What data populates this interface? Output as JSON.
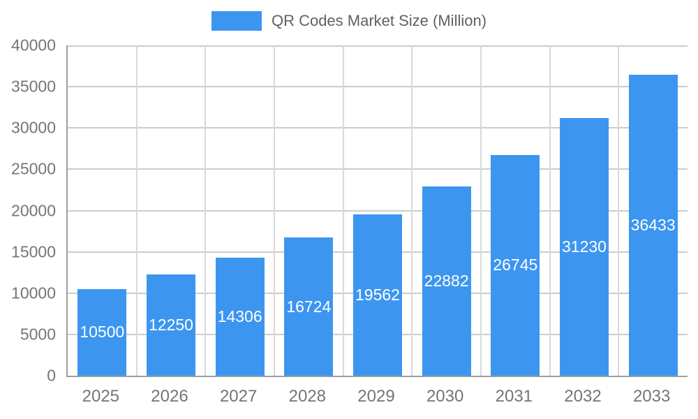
{
  "chart_data": {
    "type": "bar",
    "title": "QR Codes Market Size (Million)",
    "categories": [
      "2025",
      "2026",
      "2027",
      "2028",
      "2029",
      "2030",
      "2031",
      "2032",
      "2033"
    ],
    "values": [
      10500,
      12250,
      14306,
      16724,
      19562,
      22882,
      26745,
      31230,
      36433
    ],
    "xlabel": "",
    "ylabel": "",
    "ylim": [
      0,
      40000
    ],
    "ytick_step": 5000,
    "ytick_labels": [
      "0",
      "5000",
      "10000",
      "15000",
      "20000",
      "25000",
      "30000",
      "35000",
      "40000"
    ],
    "grid": true,
    "legend_position": "top",
    "bar_color": "#3C96F0",
    "bar_value_label_color": "#ffffff",
    "axis_text_color": "#757575",
    "legend_text_color": "#616161",
    "grid_color": "#cccccc",
    "grid_color_vertical": "#d9d9d9",
    "axis_line_color": "#9e9e9e",
    "background_color": "#ffffff"
  }
}
